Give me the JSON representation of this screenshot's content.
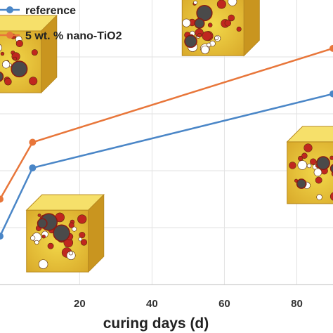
{
  "chart_data": {
    "type": "line",
    "xlabel": "curing days (d)",
    "ylabel": "",
    "xlim": [
      -2,
      90
    ],
    "ylim": [
      0,
      100
    ],
    "xticks": [
      20,
      40,
      60,
      80
    ],
    "grid": true,
    "legend_position": "top-left",
    "series": [
      {
        "name": "reference",
        "color": "#4a86c7",
        "x": [
          -2,
          7,
          90
        ],
        "y": [
          17,
          41,
          67
        ]
      },
      {
        "name": "5 wt. % nano-TiO2",
        "color": "#e8763a",
        "x": [
          -2,
          7,
          90
        ],
        "y": [
          30,
          50,
          83
        ]
      }
    ],
    "annotations": [
      {
        "label": "microstructure cube",
        "x": 3,
        "y": 81
      },
      {
        "label": "microstructure cube",
        "x": 59,
        "y": 94
      },
      {
        "label": "microstructure cube",
        "x": 16,
        "y": 18
      },
      {
        "label": "microstructure cube",
        "x": 88,
        "y": 42
      }
    ]
  }
}
